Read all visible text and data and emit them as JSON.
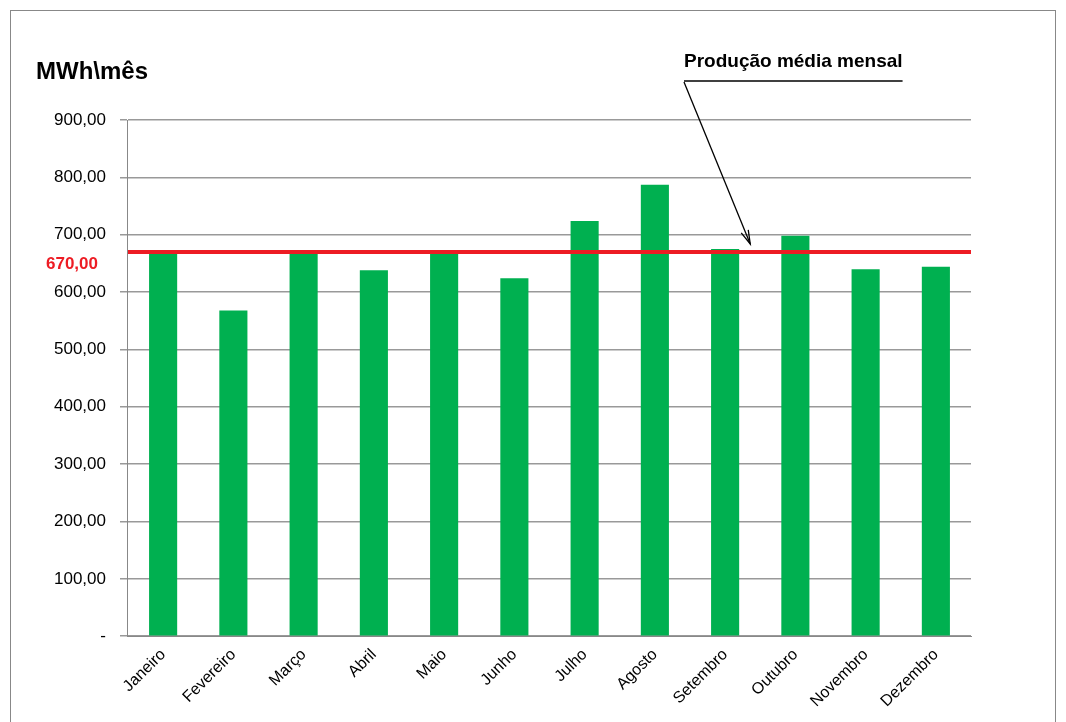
{
  "chart_data": {
    "type": "bar",
    "ylabel": "MWh\\mês",
    "categories": [
      "Janeiro",
      "Fevereiro",
      "Março",
      "Abril",
      "Maio",
      "Junho",
      "Julho",
      "Agosto",
      "Setembro",
      "Outubro",
      "Novembro",
      "Dezembro"
    ],
    "values": [
      668,
      568,
      668,
      638,
      668,
      624,
      724,
      787,
      675,
      698,
      640,
      644
    ],
    "color": "#00b050",
    "ylim": [
      0,
      900
    ],
    "yticks": [
      {
        "value": 0,
        "label": "-"
      },
      {
        "value": 100,
        "label": "100,00"
      },
      {
        "value": 200,
        "label": "200,00"
      },
      {
        "value": 300,
        "label": "300,00"
      },
      {
        "value": 400,
        "label": "400,00"
      },
      {
        "value": 500,
        "label": "500,00"
      },
      {
        "value": 600,
        "label": "600,00"
      },
      {
        "value": 700,
        "label": "700,00"
      },
      {
        "value": 800,
        "label": "800,00"
      },
      {
        "value": 900,
        "label": "900,00"
      }
    ],
    "grid": "y",
    "legend": false,
    "ref_lines": [
      {
        "axis": "y",
        "value": 670,
        "label": "670,00",
        "color": "#ed1c24"
      }
    ],
    "annotations": [
      "Produção média mensal"
    ]
  }
}
